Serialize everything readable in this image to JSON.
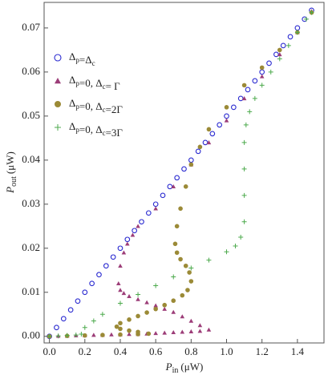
{
  "chart_data": {
    "type": "scatter",
    "xlabel": {
      "symbol": "P",
      "subscript": "in",
      "unit": "(μW)"
    },
    "ylabel": {
      "symbol": "P",
      "subscript": "out",
      "unit": "(μW)"
    },
    "xlim": [
      -0.03,
      1.55
    ],
    "ylim": [
      -0.0015,
      0.0758
    ],
    "xticks": [
      {
        "value": 0,
        "label": "0.0"
      },
      0.2,
      0.4,
      0.6,
      0.8,
      {
        "value": 1,
        "label": "1.0"
      },
      1.2,
      1.4
    ],
    "yticks": [
      {
        "value": 0,
        "label": "0.00"
      },
      0.01,
      0.02,
      0.03,
      0.04,
      0.05,
      0.06,
      0.07
    ],
    "legend": "upper left",
    "series": [
      {
        "name": "Δp=Δc",
        "color": "#2a2ad0",
        "marker": "open-circle",
        "x": [
          0,
          0.04,
          0.08,
          0.12,
          0.16,
          0.2,
          0.24,
          0.28,
          0.32,
          0.36,
          0.4,
          0.44,
          0.48,
          0.52,
          0.56,
          0.6,
          0.64,
          0.68,
          0.72,
          0.76,
          0.8,
          0.84,
          0.88,
          0.92,
          0.96,
          1,
          1.04,
          1.08,
          1.12,
          1.16,
          1.2,
          1.24,
          1.28,
          1.32,
          1.36,
          1.4,
          1.44,
          1.48
        ],
        "values": [
          0,
          0.002,
          0.004,
          0.006,
          0.008,
          0.01,
          0.012,
          0.014,
          0.016,
          0.018,
          0.02,
          0.022,
          0.024,
          0.026,
          0.028,
          0.03,
          0.032,
          0.034,
          0.036,
          0.038,
          0.04,
          0.042,
          0.044,
          0.046,
          0.048,
          0.05,
          0.052,
          0.054,
          0.056,
          0.058,
          0.06,
          0.062,
          0.064,
          0.066,
          0.068,
          0.07,
          0.072,
          0.074
        ]
      },
      {
        "name": "Δp=0, Δc= Γ",
        "color": "#9c3d78",
        "marker": "triangle",
        "x": [
          0,
          0.05,
          0.1,
          0.15,
          0.2,
          0.25,
          0.3,
          0.35,
          0.4,
          0.45,
          0.5,
          0.55,
          0.6,
          0.65,
          0.7,
          0.75,
          0.8,
          0.85,
          0.9,
          0.85,
          0.8,
          0.75,
          0.7,
          0.65,
          0.6,
          0.55,
          0.5,
          0.45,
          0.42,
          0.4,
          0.39,
          0.4,
          0.42,
          0.44,
          0.47,
          0.5,
          0.6,
          0.7,
          0.8,
          0.9,
          1,
          1.1,
          1.2,
          1.3,
          1.4,
          1.48
        ],
        "values": [
          0,
          0.0001,
          0.0001,
          0.0002,
          0.0002,
          0.0003,
          0.0003,
          0.0004,
          0.0004,
          0.0005,
          0.0005,
          0.0006,
          0.0007,
          0.0008,
          0.0009,
          0.001,
          0.0011,
          0.0012,
          0.0015,
          0.0025,
          0.0035,
          0.0045,
          0.0055,
          0.0062,
          0.007,
          0.0077,
          0.0084,
          0.0091,
          0.0098,
          0.0105,
          0.012,
          0.016,
          0.019,
          0.021,
          0.023,
          0.025,
          0.029,
          0.034,
          0.039,
          0.044,
          0.049,
          0.054,
          0.059,
          0.064,
          0.069,
          0.0738
        ]
      },
      {
        "name": "Δp=0, Δc=2Γ",
        "color": "#9b8a37",
        "marker": "circle",
        "x": [
          0,
          0.1,
          0.2,
          0.3,
          0.4,
          0.5,
          0.56,
          0.5,
          0.45,
          0.4,
          0.38,
          0.4,
          0.45,
          0.5,
          0.55,
          0.6,
          0.65,
          0.7,
          0.75,
          0.78,
          0.8,
          0.79,
          0.77,
          0.74,
          0.72,
          0.71,
          0.72,
          0.74,
          0.77,
          0.8,
          0.85,
          0.9,
          1,
          1.1,
          1.2,
          1.3,
          1.4,
          1.48
        ],
        "values": [
          0,
          0.0001,
          0.0002,
          0.0003,
          0.0004,
          0.0005,
          0.0006,
          0.001,
          0.0013,
          0.0017,
          0.0022,
          0.003,
          0.0038,
          0.0046,
          0.0054,
          0.0062,
          0.0071,
          0.0081,
          0.0093,
          0.0105,
          0.0125,
          0.0145,
          0.016,
          0.0175,
          0.019,
          0.021,
          0.025,
          0.029,
          0.034,
          0.039,
          0.043,
          0.047,
          0.052,
          0.057,
          0.061,
          0.065,
          0.069,
          0.0735
        ]
      },
      {
        "name": "Δp=0, Δc=3Γ",
        "color": "#4caa4c",
        "marker": "plus",
        "x": [
          0,
          0.05,
          0.1,
          0.15,
          0.18,
          0.2,
          0.25,
          0.3,
          0.4,
          0.5,
          0.6,
          0.7,
          0.8,
          0.9,
          1,
          1.05,
          1.08,
          1.1,
          1.1,
          1.1,
          1.1,
          1.11,
          1.13,
          1.16,
          1.2,
          1.25,
          1.3,
          1.35,
          1.4,
          1.45,
          1.48
        ],
        "values": [
          0,
          0.0001,
          0.0002,
          0.0003,
          0.0005,
          0.002,
          0.0035,
          0.005,
          0.0075,
          0.0095,
          0.0115,
          0.0135,
          0.0155,
          0.0173,
          0.0192,
          0.0205,
          0.0225,
          0.026,
          0.032,
          0.038,
          0.044,
          0.048,
          0.051,
          0.054,
          0.057,
          0.06,
          0.063,
          0.066,
          0.069,
          0.072,
          0.0735
        ]
      }
    ]
  }
}
